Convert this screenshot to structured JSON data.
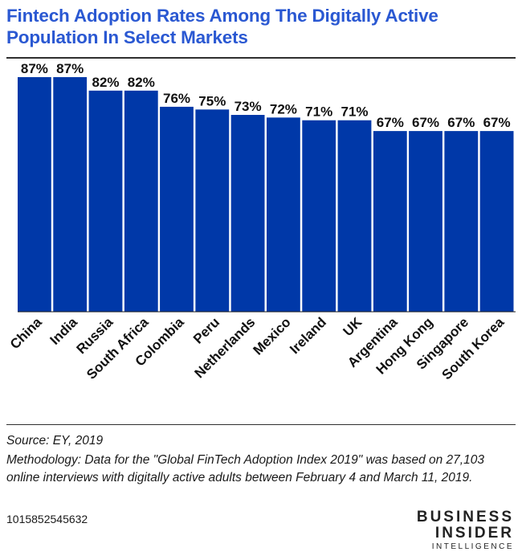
{
  "title": "Fintech Adoption Rates Among The Digitally Active Population In Select Markets",
  "chart_data": {
    "type": "bar",
    "categories": [
      "China",
      "India",
      "Russia",
      "South Africa",
      "Colombia",
      "Peru",
      "Netherlands",
      "Mexico",
      "Ireland",
      "UK",
      "Argentina",
      "Hong Kong",
      "Singapore",
      "South Korea"
    ],
    "values": [
      87,
      87,
      82,
      82,
      76,
      75,
      73,
      72,
      71,
      71,
      67,
      67,
      67,
      67
    ],
    "value_labels": [
      "87%",
      "87%",
      "82%",
      "82%",
      "76%",
      "75%",
      "73%",
      "72%",
      "71%",
      "71%",
      "67%",
      "67%",
      "67%",
      "67%"
    ],
    "title": "Fintech Adoption Rates Among The Digitally Active Population In Select Markets",
    "xlabel": "",
    "ylabel": "",
    "ylim": [
      0,
      100
    ],
    "grid": false,
    "bar_color": "#0038a8"
  },
  "footer": {
    "source": "Source: EY, 2019",
    "methodology": "Methodology: Data for the \"Global FinTech Adoption Index 2019\" was based on 27,103 online interviews with digitally active adults between February 4 and March 11, 2019.",
    "code": "1015852545632"
  },
  "logo": {
    "line1": "BUSINESS",
    "line2": "INSIDER",
    "line3": "INTELLIGENCE"
  }
}
